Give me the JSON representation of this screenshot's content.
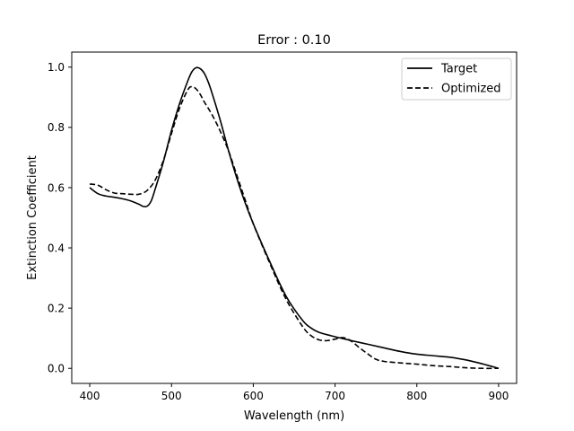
{
  "chart_data": {
    "type": "line",
    "title": "Error : 0.10",
    "xlabel": "Wavelength (nm)",
    "ylabel": "Extinction Coefficient",
    "xlim": [
      378,
      922
    ],
    "ylim": [
      -0.05,
      1.05
    ],
    "xticks": [
      400,
      500,
      600,
      700,
      800,
      900
    ],
    "yticks": [
      0.0,
      0.2,
      0.4,
      0.6,
      0.8,
      1.0
    ],
    "xtick_labels": [
      "400",
      "500",
      "600",
      "700",
      "800",
      "900"
    ],
    "ytick_labels": [
      "0.0",
      "0.2",
      "0.4",
      "0.6",
      "0.8",
      "1.0"
    ],
    "grid": false,
    "legend_position": "top-right",
    "series": [
      {
        "name": "Target",
        "style": "solid",
        "color": "#000000",
        "x": [
          400,
          410,
          420,
          430,
          440,
          450,
          460,
          465,
          470,
          475,
          480,
          490,
          500,
          510,
          520,
          525,
          530,
          535,
          540,
          545,
          550,
          560,
          570,
          580,
          590,
          600,
          620,
          640,
          660,
          670,
          680,
          700,
          720,
          740,
          760,
          780,
          800,
          820,
          840,
          860,
          880,
          900
        ],
        "y": [
          0.6,
          0.58,
          0.572,
          0.568,
          0.563,
          0.556,
          0.545,
          0.538,
          0.538,
          0.555,
          0.595,
          0.685,
          0.79,
          0.88,
          0.955,
          0.985,
          0.998,
          0.995,
          0.98,
          0.95,
          0.91,
          0.82,
          0.72,
          0.63,
          0.55,
          0.48,
          0.355,
          0.24,
          0.16,
          0.135,
          0.12,
          0.105,
          0.092,
          0.08,
          0.068,
          0.056,
          0.047,
          0.042,
          0.037,
          0.028,
          0.015,
          0.0
        ]
      },
      {
        "name": "Optimized",
        "style": "dashed",
        "color": "#000000",
        "x": [
          400,
          410,
          420,
          430,
          440,
          450,
          460,
          470,
          480,
          490,
          500,
          510,
          520,
          525,
          530,
          535,
          540,
          550,
          560,
          570,
          580,
          590,
          600,
          620,
          640,
          660,
          670,
          680,
          690,
          700,
          710,
          720,
          730,
          740,
          750,
          760,
          780,
          800,
          820,
          840,
          860,
          880,
          900
        ],
        "y": [
          0.612,
          0.608,
          0.593,
          0.582,
          0.58,
          0.578,
          0.578,
          0.59,
          0.625,
          0.69,
          0.78,
          0.865,
          0.925,
          0.935,
          0.928,
          0.91,
          0.885,
          0.84,
          0.785,
          0.72,
          0.64,
          0.56,
          0.48,
          0.35,
          0.23,
          0.14,
          0.11,
          0.095,
          0.092,
          0.097,
          0.102,
          0.09,
          0.068,
          0.048,
          0.03,
          0.023,
          0.018,
          0.014,
          0.009,
          0.006,
          0.002,
          0.0,
          0.0
        ]
      }
    ]
  }
}
